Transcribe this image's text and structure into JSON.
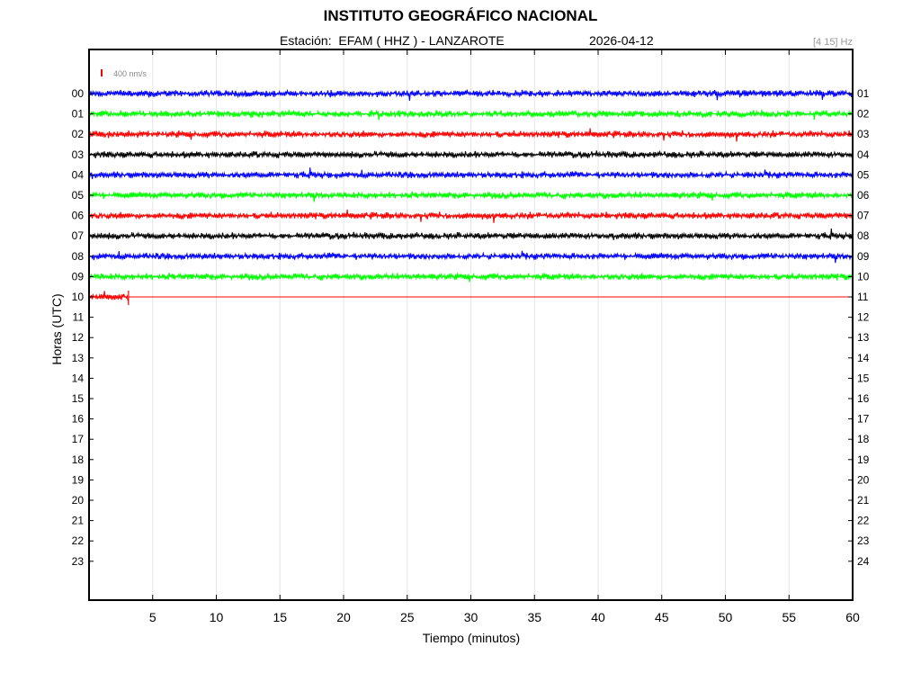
{
  "header": {
    "title": "INSTITUTO GEOGRÁFICO NACIONAL",
    "station_line": "Estación:  EFAM ( HHZ ) - LANZAROTE",
    "date": "2026-04-12",
    "band": "[4 15] Hz"
  },
  "chart_data": {
    "type": "line",
    "title": "INSTITUTO GEOGRÁFICO NACIONAL",
    "xlabel": "Tiempo (minutos)",
    "ylabel": "Horas (UTC)",
    "xlim": [
      0,
      60
    ],
    "x_ticks": [
      5,
      10,
      15,
      20,
      25,
      30,
      35,
      40,
      45,
      50,
      55,
      60
    ],
    "x_tick_labels": [
      "5",
      "10",
      "15",
      "20",
      "25",
      "30",
      "35",
      "40",
      "45",
      "50",
      "55",
      "60"
    ],
    "grid": "vertical",
    "left_tick_labels": [
      "00",
      "01",
      "02",
      "03",
      "04",
      "05",
      "06",
      "07",
      "08",
      "09",
      "10",
      "11",
      "12",
      "13",
      "14",
      "15",
      "16",
      "17",
      "18",
      "19",
      "20",
      "21",
      "22",
      "23"
    ],
    "right_tick_labels": [
      "01",
      "02",
      "03",
      "04",
      "05",
      "06",
      "07",
      "08",
      "09",
      "10",
      "11",
      "12",
      "13",
      "14",
      "15",
      "16",
      "17",
      "18",
      "19",
      "20",
      "21",
      "22",
      "23",
      "24"
    ],
    "scale_label": "400 nm/s",
    "scale_color": "#ff0000",
    "series": [
      {
        "hour": "00",
        "color": "#0000ff",
        "end_minute": 60
      },
      {
        "hour": "01",
        "color": "#00ff00",
        "end_minute": 60
      },
      {
        "hour": "02",
        "color": "#ff0000",
        "end_minute": 60
      },
      {
        "hour": "03",
        "color": "#000000",
        "end_minute": 60
      },
      {
        "hour": "04",
        "color": "#0000ff",
        "end_minute": 60
      },
      {
        "hour": "05",
        "color": "#00ff00",
        "end_minute": 60
      },
      {
        "hour": "06",
        "color": "#ff0000",
        "end_minute": 60
      },
      {
        "hour": "07",
        "color": "#000000",
        "end_minute": 60
      },
      {
        "hour": "08",
        "color": "#0000ff",
        "end_minute": 60
      },
      {
        "hour": "09",
        "color": "#00ff00",
        "end_minute": 60
      },
      {
        "hour": "10",
        "color": "#ff0000",
        "end_minute": 3.1
      }
    ]
  }
}
